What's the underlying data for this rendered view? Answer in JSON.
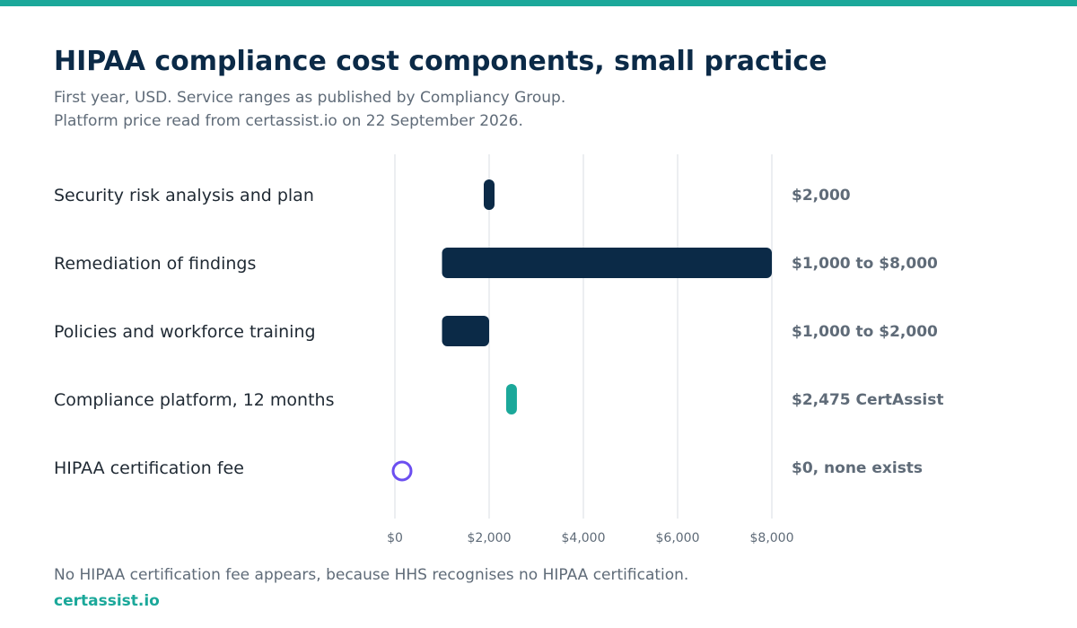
{
  "header": {
    "title": "HIPAA compliance cost components, small practice",
    "subtitle_line1": "First year, USD. Service ranges as published by Compliancy Group.",
    "subtitle_line2": "Platform price read from certassist.io on 22 September 2026."
  },
  "footer": {
    "note": "No HIPAA certification fee appears, because HHS recognises no HIPAA certification.",
    "brand": "certassist.io"
  },
  "colors": {
    "accent": "#1ba89a",
    "navy": "#0b2a47",
    "marker": "#6b4ef0",
    "muted": "#5f6b78",
    "grid": "#eceef1"
  },
  "chart_data": {
    "type": "bar",
    "orientation": "horizontal-range",
    "title": "HIPAA compliance cost components, small practice",
    "xlim": [
      0,
      8000
    ],
    "x_ticks": [
      0,
      2000,
      4000,
      6000,
      8000
    ],
    "x_tick_labels": [
      "$0",
      "$2,000",
      "$4,000",
      "$6,000",
      "$8,000"
    ],
    "grid": true,
    "categories": [
      "Security risk analysis and plan",
      "Remediation of findings",
      "Policies and workforce training",
      "Compliance platform, 12 months",
      "HIPAA certification fee"
    ],
    "ranges": [
      {
        "low": 2000,
        "high": 2000,
        "style": "navy",
        "label": "$2,000"
      },
      {
        "low": 1000,
        "high": 8000,
        "style": "navy",
        "label": "$1,000 to $8,000"
      },
      {
        "low": 1000,
        "high": 2000,
        "style": "navy",
        "label": "$1,000 to $2,000"
      },
      {
        "low": 2475,
        "high": 2475,
        "style": "accent",
        "label": "$2,475 CertAssist"
      },
      {
        "low": 0,
        "high": 0,
        "style": "open-circle",
        "label": "$0, none exists"
      }
    ]
  }
}
